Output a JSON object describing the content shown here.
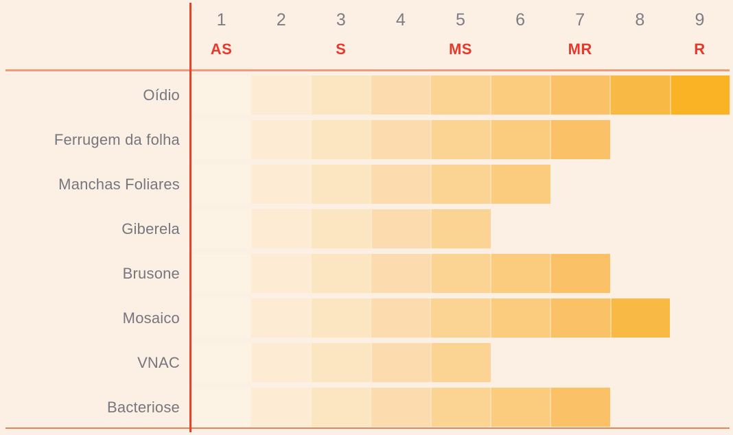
{
  "chart_data": {
    "type": "bar",
    "title": "",
    "orientation": "horizontal",
    "x_ticks": [
      "1",
      "2",
      "3",
      "4",
      "5",
      "6",
      "7",
      "8",
      "9"
    ],
    "zone_labels": [
      {
        "label": "AS",
        "tick": "1"
      },
      {
        "label": "S",
        "tick": "3"
      },
      {
        "label": "MS",
        "tick": "5"
      },
      {
        "label": "MR",
        "tick": "7"
      },
      {
        "label": "R",
        "tick": "9"
      }
    ],
    "categories": [
      "Oídio",
      "Ferrugem da folha",
      "Manchas Foliares",
      "Giberela",
      "Brusone",
      "Mosaico",
      "VNAC",
      "Bacteriose"
    ],
    "values": [
      9,
      7,
      6,
      5,
      7,
      8,
      5,
      7
    ],
    "xlim": [
      1,
      9
    ],
    "grid": false,
    "legend": "none",
    "cell_colors": [
      "#fdf3e5",
      "#fdecd3",
      "#fce5c1",
      "#fcdcae",
      "#fbd494",
      "#fbcb7e",
      "#fac166",
      "#f9ba45",
      "#f9b324"
    ],
    "colors": {
      "background": "#fcf0e4",
      "tick_text": "#7d7d85",
      "category_text": "#76767e",
      "zone_text": "#e6392b",
      "vertical_axis_line": "#e0472a",
      "top_rule": "#f0997b",
      "bottom_rule": "#e8825b"
    }
  }
}
